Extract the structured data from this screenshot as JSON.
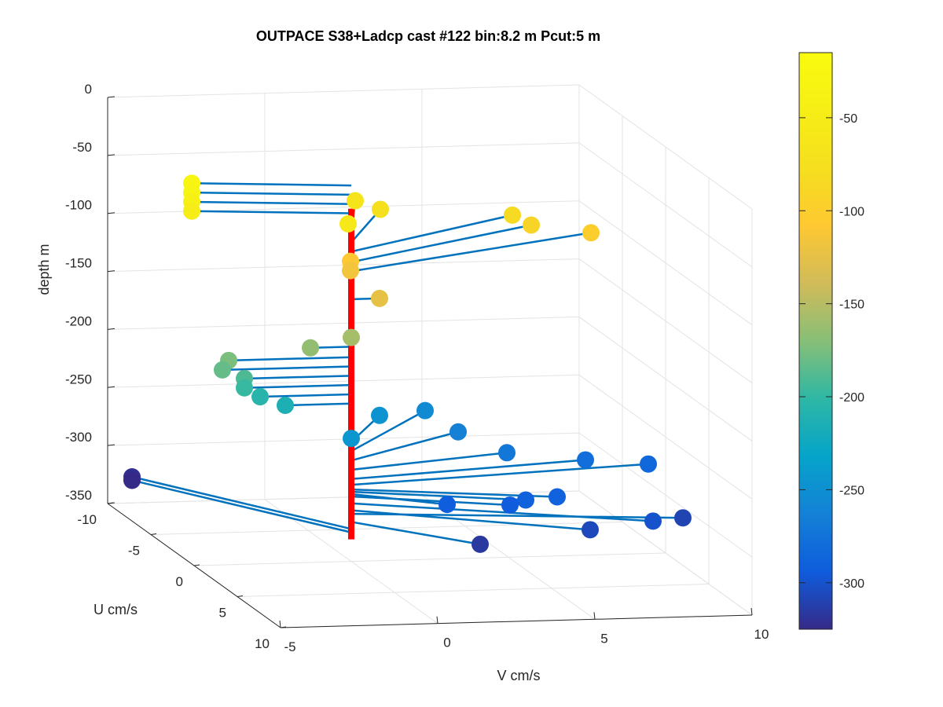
{
  "chart_data": {
    "type": "scatter",
    "projection": "3d",
    "title": "OUTPACE S38+Ladcp cast #122 bin:8.2 m  Pcut:5 m",
    "xlabel": "U cm/s",
    "ylabel": "V cm/s",
    "zlabel": "depth m",
    "xlim": [
      -10,
      10
    ],
    "ylim": [
      -5,
      10
    ],
    "zlim": [
      -350,
      0
    ],
    "x_ticks": [
      "-10",
      "-5",
      "0",
      "5",
      "10"
    ],
    "y_ticks": [
      "-5",
      "0",
      "5",
      "10"
    ],
    "z_ticks": [
      "0",
      "-50",
      "-100",
      "-150",
      "-200",
      "-250",
      "-300",
      "-350"
    ],
    "grid": true,
    "colormap": "parula",
    "colorbar": {
      "range": [
        -325,
        -15
      ],
      "ticks": [
        "-50",
        "-100",
        "-150",
        "-200",
        "-250",
        "-300"
      ]
    },
    "cast_line_color": "#ff0000",
    "vector_color": "#0072bd",
    "series": [
      {
        "points": [
          {
            "u": -1.0,
            "v": -4.8,
            "depth": -26
          },
          {
            "u": -1.0,
            "v": -4.8,
            "depth": -34
          },
          {
            "u": -1.0,
            "v": -4.8,
            "depth": -42
          },
          {
            "u": -1.0,
            "v": -4.8,
            "depth": -50
          },
          {
            "u": 0.0,
            "v": -0.1,
            "depth": -59
          },
          {
            "u": -5.0,
            "v": 1.5,
            "depth": -67
          },
          {
            "u": -5.0,
            "v": 2.3,
            "depth": -75
          },
          {
            "u": -5.0,
            "v": 6.5,
            "depth": -83
          },
          {
            "u": -5.0,
            "v": 7.1,
            "depth": -92
          },
          {
            "u": -5.0,
            "v": 9.0,
            "depth": -100
          },
          {
            "u": -3.0,
            "v": 0.8,
            "depth": -108
          },
          {
            "u": -3.0,
            "v": 0.8,
            "depth": -116
          },
          {
            "u": 0.0,
            "v": 0.9,
            "depth": -124
          },
          {
            "u": 0.0,
            "v": 0.0,
            "depth": -157
          },
          {
            "u": 0.0,
            "v": -1.3,
            "depth": -165
          },
          {
            "u": 0.0,
            "v": -3.9,
            "depth": -174
          },
          {
            "u": 0.0,
            "v": -4.1,
            "depth": -182
          },
          {
            "u": 0.0,
            "v": -3.4,
            "depth": -190
          },
          {
            "u": 0.0,
            "v": -3.4,
            "depth": -198
          },
          {
            "u": 0.0,
            "v": -2.9,
            "depth": -206
          },
          {
            "u": 0.0,
            "v": -2.1,
            "depth": -214
          },
          {
            "u": 0.0,
            "v": 0.0,
            "depth": -244
          },
          {
            "u": -4.0,
            "v": 2.0,
            "depth": -247
          },
          {
            "u": -6.0,
            "v": 4.0,
            "depth": -255
          },
          {
            "u": -4.0,
            "v": 4.5,
            "depth": -263
          },
          {
            "u": -2.0,
            "v": 5.5,
            "depth": -271
          },
          {
            "u": -2.0,
            "v": 8.0,
            "depth": -279
          },
          {
            "u": -2.0,
            "v": 10.0,
            "depth": -284
          },
          {
            "u": 2.0,
            "v": 6.0,
            "depth": -288
          },
          {
            "u": 2.0,
            "v": 5.0,
            "depth": -290
          },
          {
            "u": 2.0,
            "v": 2.5,
            "depth": -292
          },
          {
            "u": 2.0,
            "v": 4.5,
            "depth": -294
          },
          {
            "u": 4.0,
            "v": 8.5,
            "depth": -300
          },
          {
            "u": 4.0,
            "v": 6.5,
            "depth": -306
          },
          {
            "u": 2.0,
            "v": 10.0,
            "depth": -309
          },
          {
            "u": 4.0,
            "v": 3.0,
            "depth": -316
          },
          {
            "u": -9.0,
            "v": -4.5,
            "depth": -322
          },
          {
            "u": -9.0,
            "v": -4.5,
            "depth": -325
          }
        ]
      }
    ]
  }
}
